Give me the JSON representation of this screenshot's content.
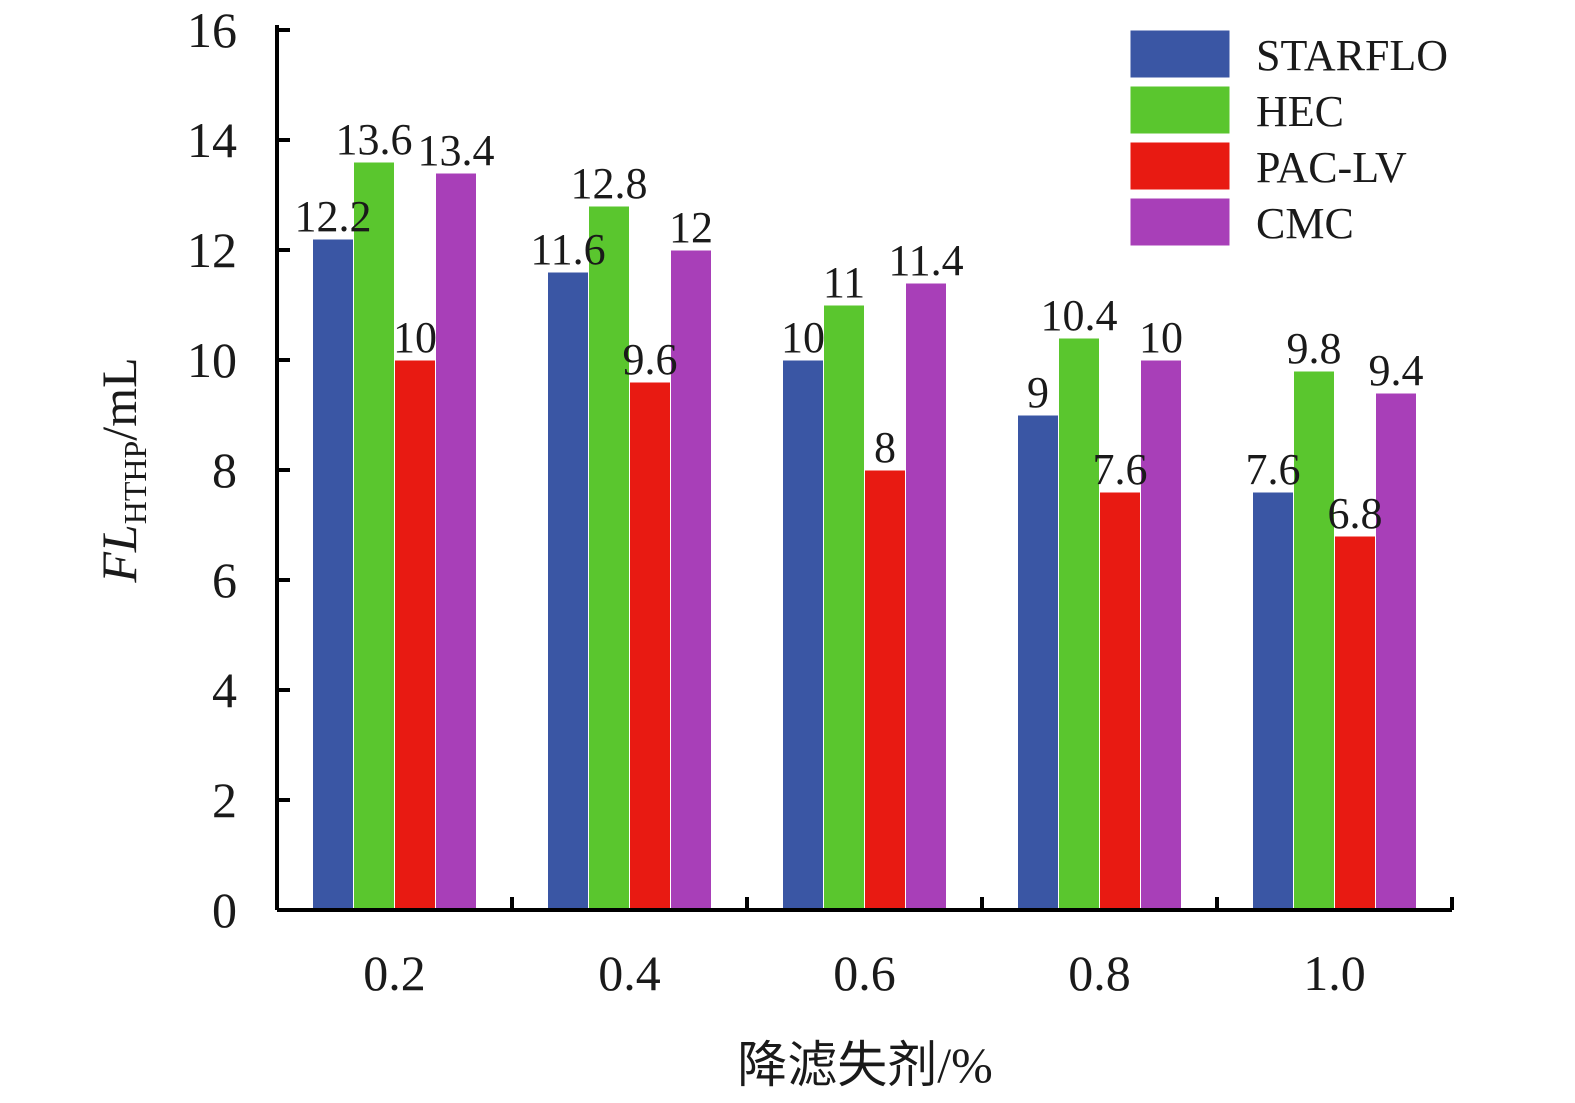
{
  "chart_data": {
    "type": "bar",
    "categories": [
      "0.2",
      "0.4",
      "0.6",
      "0.8",
      "1.0"
    ],
    "series": [
      {
        "name": "STARFLO",
        "values": [
          12.2,
          11.6,
          10,
          9,
          7.6
        ],
        "labels": [
          "12.2",
          "11.6",
          "10",
          "9",
          "7.6"
        ],
        "color": "#3a56a4"
      },
      {
        "name": "HEC",
        "values": [
          13.6,
          12.8,
          11,
          10.4,
          9.8
        ],
        "labels": [
          "13.6",
          "12.8",
          "11",
          "10.4",
          "9.8"
        ],
        "color": "#5ac62e"
      },
      {
        "name": "PAC-LV",
        "values": [
          10,
          9.6,
          8,
          7.6,
          6.8
        ],
        "labels": [
          "10",
          "9.6",
          "8",
          "7.6",
          "6.8"
        ],
        "color": "#e81a12"
      },
      {
        "name": "CMC",
        "values": [
          13.4,
          12,
          11.4,
          10,
          9.4
        ],
        "labels": [
          "13.4",
          "12",
          "11.4",
          "10",
          "9.4"
        ],
        "color": "#a83fb8"
      }
    ],
    "ylim": [
      0,
      16
    ],
    "yticks": [
      "0",
      "2",
      "4",
      "6",
      "8",
      "10",
      "12",
      "14",
      "16"
    ],
    "xlabel": "降滤失剂/%",
    "ylabel": {
      "main": "FL",
      "sub": "HTHP",
      "unit": "/mL"
    },
    "legend_position": "top-right",
    "grid": false
  }
}
